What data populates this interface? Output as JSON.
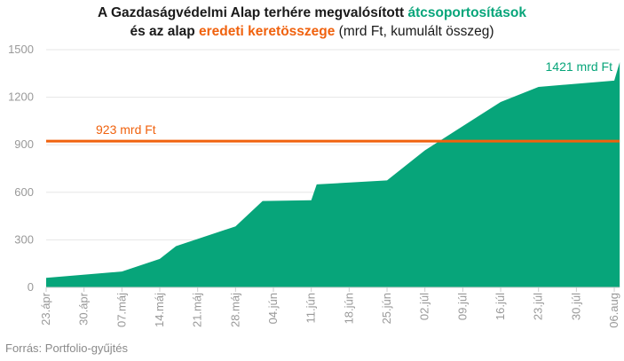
{
  "title": {
    "line1_prefix": "A Gazdaságvédelmi Alap terhére megvalósított ",
    "line1_highlight": "átcsoportosítások",
    "line2_prefix": "és az alap ",
    "line2_highlight": "eredeti keretösszege",
    "line2_suffix": " (mrd Ft, kumulált összeg)"
  },
  "source": "Forrás: Portfolio-gyűjtés",
  "colors": {
    "area": "#07a57a",
    "line": "#f0620e",
    "axis_text": "#999999",
    "grid": "#e6e6e6"
  },
  "chart_data": {
    "type": "area",
    "x_ticks": [
      "23.ápr",
      "30.ápr",
      "07.máj",
      "14.máj",
      "21.máj",
      "28.máj",
      "04.jún",
      "11.jún",
      "18.jún",
      "25.jún",
      "02.júl",
      "09.júl",
      "16.júl",
      "23.júl",
      "30.júl",
      "06.aug"
    ],
    "ylim": [
      0,
      1500
    ],
    "yticks": [
      0,
      300,
      600,
      900,
      1200,
      1500
    ],
    "grid": true,
    "series": [
      {
        "x": [
          "2020-04-23",
          "2020-05-07",
          "2020-05-14",
          "2020-05-17",
          "2020-05-28",
          "2020-06-02",
          "2020-06-11",
          "2020-06-12",
          "2020-06-25",
          "2020-07-02",
          "2020-07-16",
          "2020-07-23",
          "2020-08-06",
          "2020-08-07"
        ],
        "values": [
          60,
          100,
          180,
          260,
          385,
          545,
          550,
          650,
          675,
          865,
          1170,
          1265,
          1305,
          1421
        ]
      }
    ],
    "reference_line": {
      "value": 923,
      "label": "923 mrd Ft"
    },
    "annotation": {
      "label": "1421 mrd Ft"
    }
  }
}
